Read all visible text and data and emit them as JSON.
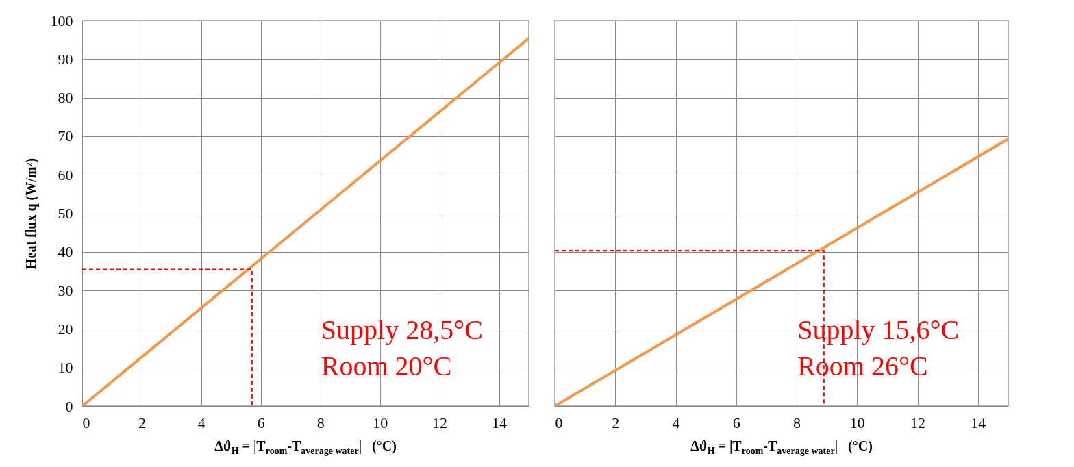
{
  "chart_data": [
    {
      "type": "line",
      "xlabel": "Δϑ$_{H}$ = |T$_{room}$-T$_{average water}$|   (°C)",
      "ylabel": "Heat flux  q (W/m²)",
      "xlim": [
        0,
        15
      ],
      "xticks": [
        0,
        2,
        4,
        6,
        8,
        10,
        12,
        14
      ],
      "ylim": [
        0,
        100
      ],
      "yticks": [
        0,
        10,
        20,
        30,
        40,
        50,
        60,
        70,
        80,
        90,
        100
      ],
      "grid": true,
      "annotations": [
        "Supply 28,5°C",
        "Room 20°C"
      ],
      "series": [
        {
          "color": "#f79646",
          "x": [
            0,
            15
          ],
          "values": [
            0,
            95.4
          ]
        },
        {
          "color": "#ff0000",
          "line_style": "dashed",
          "x": [
            0,
            5.7,
            5.7
          ],
          "values": [
            35.4,
            35.4,
            0
          ]
        }
      ]
    },
    {
      "type": "line",
      "xlabel": "Δϑ$_{H}$ = |T$_{room}$-T$_{average water}$|   (°C)",
      "xlim": [
        0,
        15
      ],
      "xticks": [
        0,
        2,
        4,
        6,
        8,
        10,
        12,
        14
      ],
      "ylim": [
        0,
        100
      ],
      "yticks": [
        0,
        10,
        20,
        30,
        40,
        50,
        60,
        70,
        80,
        90,
        100
      ],
      "grid": true,
      "tick_labels": "x",
      "annotations": [
        "Supply 15,6°C",
        "Room 26°C"
      ],
      "series": [
        {
          "color": "#f79646",
          "x": [
            0,
            15
          ],
          "values": [
            0,
            69.3
          ]
        },
        {
          "color": "#ff0000",
          "line_style": "dashed",
          "x": [
            0,
            8.9,
            8.9
          ],
          "values": [
            40.3,
            40.3,
            0
          ]
        }
      ]
    }
  ]
}
